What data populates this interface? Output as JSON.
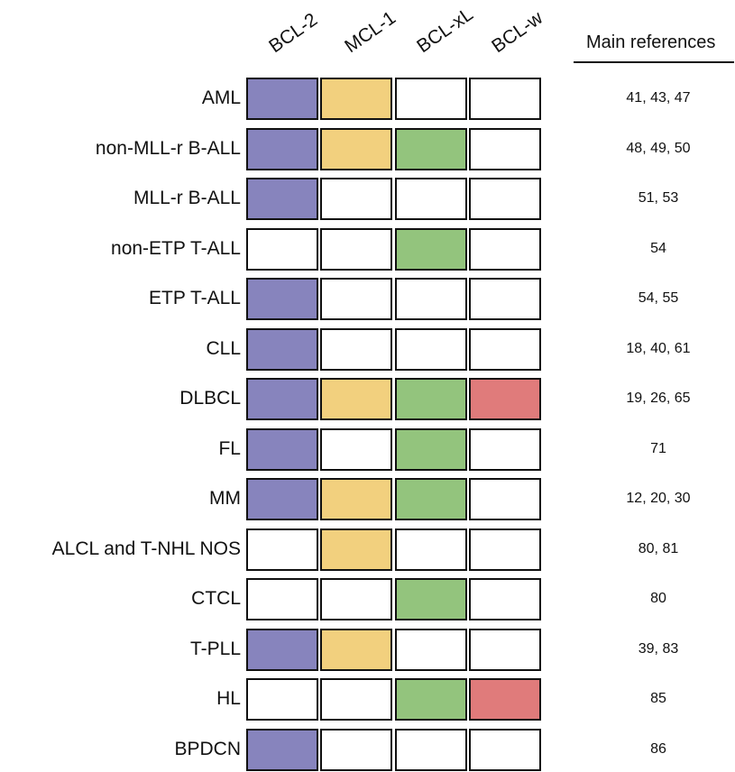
{
  "columns": [
    "BCL-2",
    "MCL-1",
    "BCL-xL",
    "BCL-w"
  ],
  "references_header": "Main references",
  "colors": {
    "BCL-2": "#8784bd",
    "MCL-1": "#f2d07e",
    "BCL-xL": "#93c47d",
    "BCL-w": "#e07b7b",
    "empty": "#ffffff"
  },
  "rows": [
    {
      "label": "AML",
      "cells": [
        true,
        true,
        false,
        false
      ],
      "refs": "41, 43, 47"
    },
    {
      "label": "non-MLL-r B-ALL",
      "cells": [
        true,
        true,
        true,
        false
      ],
      "refs": "48, 49, 50"
    },
    {
      "label": "MLL-r B-ALL",
      "cells": [
        true,
        false,
        false,
        false
      ],
      "refs": "51, 53"
    },
    {
      "label": "non-ETP T-ALL",
      "cells": [
        false,
        false,
        true,
        false
      ],
      "refs": "54"
    },
    {
      "label": "ETP T-ALL",
      "cells": [
        true,
        false,
        false,
        false
      ],
      "refs": "54, 55"
    },
    {
      "label": "CLL",
      "cells": [
        true,
        false,
        false,
        false
      ],
      "refs": "18, 40, 61"
    },
    {
      "label": "DLBCL",
      "cells": [
        true,
        true,
        true,
        true
      ],
      "refs": "19, 26, 65"
    },
    {
      "label": "FL",
      "cells": [
        true,
        false,
        true,
        false
      ],
      "refs": "71"
    },
    {
      "label": "MM",
      "cells": [
        true,
        true,
        true,
        false
      ],
      "refs": "12, 20, 30"
    },
    {
      "label": "ALCL and T-NHL NOS",
      "cells": [
        false,
        true,
        false,
        false
      ],
      "refs": "80, 81"
    },
    {
      "label": "CTCL",
      "cells": [
        false,
        false,
        true,
        false
      ],
      "refs": "80"
    },
    {
      "label": "T-PLL",
      "cells": [
        true,
        true,
        false,
        false
      ],
      "refs": "39, 83"
    },
    {
      "label": "HL",
      "cells": [
        false,
        false,
        true,
        true
      ],
      "refs": "85"
    },
    {
      "label": "BPDCN",
      "cells": [
        true,
        false,
        false,
        false
      ],
      "refs": "86"
    }
  ]
}
